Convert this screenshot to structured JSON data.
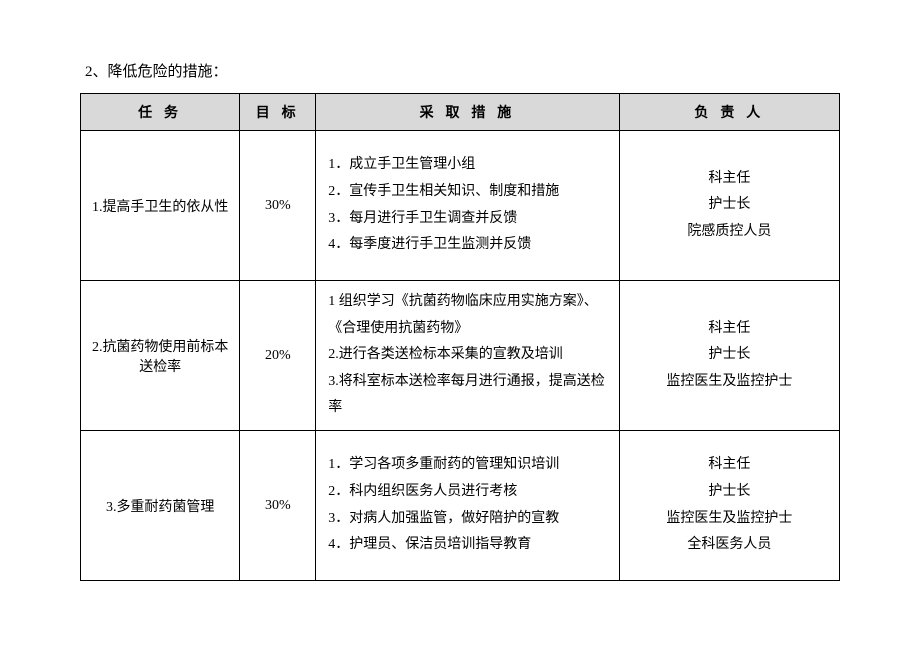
{
  "section_title": "2、降低危险的措施：",
  "headers": {
    "task": "任 务",
    "target": "目 标",
    "measures": "采 取 措 施",
    "owner": "负 责 人"
  },
  "rows": [
    {
      "task": "1.提高手卫生的依从性",
      "target": "30%",
      "measures": [
        "1．成立手卫生管理小组",
        "2．宣传手卫生相关知识、制度和措施",
        "3．每月进行手卫生调查并反馈",
        "4．每季度进行手卫生监测并反馈"
      ],
      "owners": [
        "科主任",
        "护士长",
        "院感质控人员"
      ]
    },
    {
      "task": "2.抗菌药物使用前标本送检率",
      "target": "20%",
      "measures": [
        "1 组织学习《抗菌药物临床应用实施方案》、《合理使用抗菌药物》",
        "2.进行各类送检标本采集的宣教及培训",
        "3.将科室标本送检率每月进行通报，提高送检率"
      ],
      "owners": [
        "科主任",
        "护士长",
        "监控医生及监控护士"
      ]
    },
    {
      "task": "3.多重耐药菌管理",
      "target": "30%",
      "measures": [
        "1．学习各项多重耐药的管理知识培训",
        "2．科内组织医务人员进行考核",
        "3．对病人加强监管，做好陪护的宣教",
        "4．护理员、保洁员培训指导教育"
      ],
      "owners": [
        "科主任",
        "护士长",
        "监控医生及监控护士",
        "全科医务人员"
      ]
    }
  ]
}
